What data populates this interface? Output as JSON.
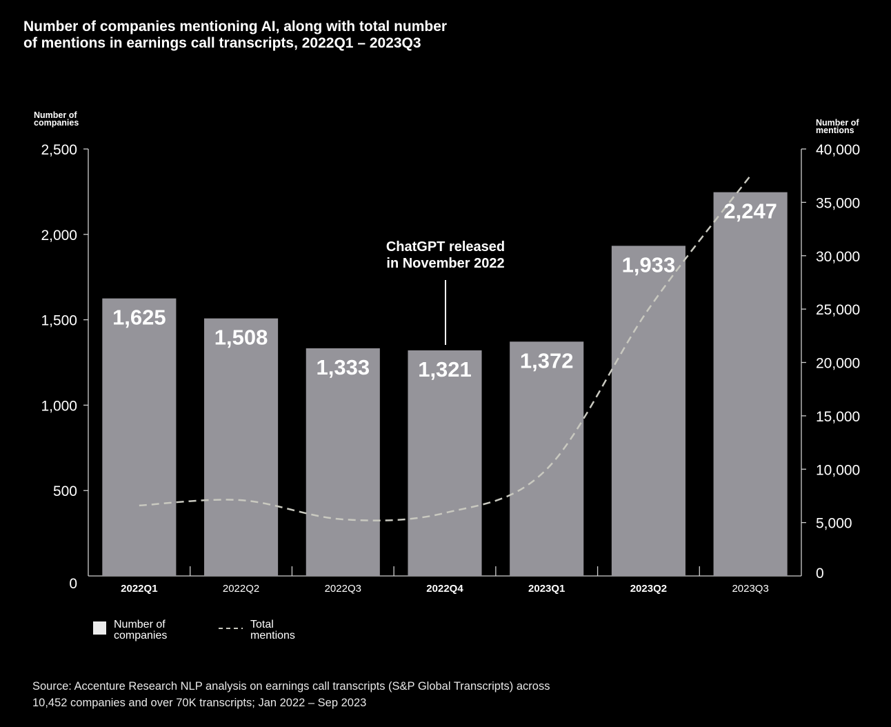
{
  "title": {
    "line1": "Number of companies mentioning AI, along with total number",
    "line2": "of mentions in earnings call transcripts, 2022Q1 – 2023Q3"
  },
  "source": {
    "line1": "Source: Accenture Research NLP analysis on earnings call transcripts (S&P Global Transcripts) across",
    "line2": "10,452 companies and over 70K transcripts; Jan 2022 – Sep 2023"
  },
  "colors": {
    "background": "#000000",
    "bar": "#95949a",
    "line": "#c9c9c0",
    "text": "#ffffff",
    "axis": "#cfcfcf"
  },
  "chart_data": {
    "type": "bar",
    "categories": [
      "2022Q1",
      "2022Q2",
      "2022Q3",
      "2022Q4",
      "2023Q1",
      "2023Q2",
      "2023Q3"
    ],
    "bold_categories": [
      "2022Q1",
      "2022Q4",
      "2023Q1",
      "2023Q2"
    ],
    "series": [
      {
        "name": "Number of companies",
        "axis": "left",
        "kind": "bar",
        "values": [
          1625,
          1508,
          1333,
          1321,
          1372,
          1933,
          2247
        ],
        "labels": [
          "1,625",
          "1,508",
          "1,333",
          "1,321",
          "1,372",
          "1,933",
          "2,247"
        ]
      },
      {
        "name": "Total mentions",
        "axis": "right",
        "kind": "line",
        "style": "dashed",
        "values": [
          6600,
          7100,
          5300,
          5900,
          10000,
          25000,
          37500
        ]
      }
    ],
    "y_left": {
      "label_line1": "Number of",
      "label_line2": "companies",
      "range": [
        0,
        2500
      ],
      "ticks": [
        0,
        500,
        1000,
        1500,
        2000,
        2500
      ],
      "tick_labels": [
        "0",
        "500",
        "1,000",
        "1,500",
        "2,000",
        "2,500"
      ]
    },
    "y_right": {
      "label_line1": "Number of",
      "label_line2": "mentions",
      "range": [
        0,
        40000
      ],
      "ticks": [
        0,
        5000,
        10000,
        15000,
        20000,
        25000,
        30000,
        35000,
        40000
      ],
      "tick_labels": [
        "0",
        "5,000",
        "10,000",
        "15,000",
        "20,000",
        "25,000",
        "30,000",
        "35,000",
        "40,000"
      ]
    },
    "annotation": {
      "line1": "ChatGPT released",
      "line2": "in November 2022",
      "category": "2022Q4"
    },
    "legend": {
      "position": "bottom-left",
      "bar_line1": "Number of",
      "bar_line2": "companies",
      "line_line1": "Total",
      "line_line2": "mentions"
    }
  }
}
